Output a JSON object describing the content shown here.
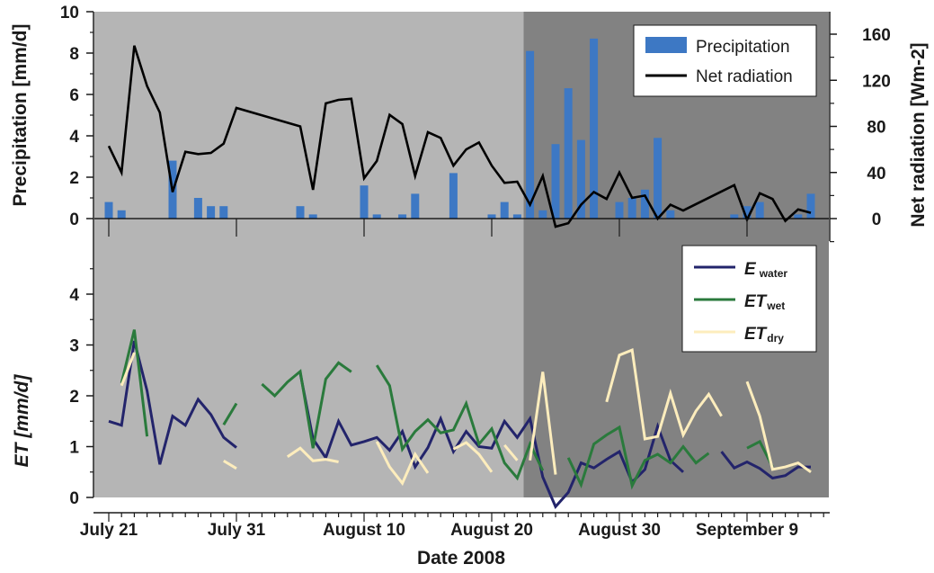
{
  "chart_data": [
    {
      "type": "bar+line",
      "panel": "top",
      "ylabel_left": "Precipitation [mm/d]",
      "ylabel_right": "Net radiation [Wm-2]",
      "ylim_left": [
        0,
        10
      ],
      "ylim_right": [
        -20,
        180
      ],
      "yticks_left": [
        "0",
        "2",
        "4",
        "6",
        "8",
        "10"
      ],
      "yticks_right": [
        "0",
        "40",
        "80",
        "120",
        "160"
      ],
      "xlim": [
        0,
        56
      ],
      "shading": [
        {
          "x_from": 0,
          "x_to": 32.5,
          "color": "#b5b5b5"
        },
        {
          "x_from": 32.5,
          "x_to": 56,
          "color": "#828282"
        }
      ],
      "legend": {
        "placement": "top-right",
        "entries": [
          "Precipitation",
          "Net radiation"
        ]
      },
      "series": [
        {
          "name": "Precipitation",
          "kind": "bar",
          "color": "#3d78c4",
          "x": [
            0,
            1,
            5,
            7,
            8,
            9,
            15,
            16,
            20,
            21,
            23,
            24,
            27,
            30,
            31,
            32,
            33,
            34,
            35,
            36,
            37,
            38,
            40,
            41,
            42,
            43,
            44,
            49,
            50,
            51,
            54,
            55
          ],
          "values": [
            0.8,
            0.4,
            2.8,
            1.0,
            0.6,
            0.6,
            0.6,
            0.2,
            1.6,
            0.2,
            0.2,
            1.2,
            2.2,
            0.2,
            0.8,
            0.2,
            8.1,
            0.4,
            3.6,
            6.3,
            3.8,
            8.7,
            0.8,
            1.0,
            1.4,
            3.9,
            0.4,
            0.2,
            0.6,
            0.8,
            0.2,
            1.2
          ]
        },
        {
          "name": "Net radiation",
          "kind": "line",
          "color": "#000000",
          "x": [
            0,
            1,
            2,
            3,
            4,
            5,
            6,
            7,
            8,
            9,
            10,
            15,
            16,
            17,
            18,
            19,
            20,
            21,
            22,
            23,
            24,
            25,
            26,
            27,
            28,
            29,
            30,
            31,
            32,
            33,
            34,
            35,
            36,
            37,
            38,
            39,
            40,
            41,
            42,
            43,
            44,
            45,
            49,
            50,
            51,
            52,
            53,
            54,
            55
          ],
          "values": [
            63,
            40,
            150,
            115,
            92,
            23,
            58,
            56,
            57,
            65,
            96,
            80,
            25,
            100,
            103,
            104,
            35,
            50,
            90,
            82,
            37,
            75,
            70,
            46,
            60,
            66,
            46,
            31,
            32,
            12,
            37,
            -7,
            -4,
            12,
            23,
            17,
            40,
            18,
            20,
            0,
            12,
            7,
            29,
            -1,
            22,
            17,
            -2,
            8,
            5
          ]
        }
      ]
    },
    {
      "type": "line",
      "panel": "bottom",
      "ylabel": "ET [mm/d]",
      "xlabel": "Date 2008",
      "ylim": [
        0,
        4.5
      ],
      "yticks": [
        "0",
        "1",
        "2",
        "3",
        "4"
      ],
      "xlim": [
        0,
        56
      ],
      "x_ticks": [
        {
          "x": 0,
          "label": "July 21"
        },
        {
          "x": 10,
          "label": "July 31"
        },
        {
          "x": 20,
          "label": "August 10"
        },
        {
          "x": 30,
          "label": "August 20"
        },
        {
          "x": 40,
          "label": "August 30"
        },
        {
          "x": 50,
          "label": "September 9"
        }
      ],
      "shading": [
        {
          "x_from": 0,
          "x_to": 32.5,
          "color": "#b5b5b5"
        },
        {
          "x_from": 32.5,
          "x_to": 56,
          "color": "#828282"
        }
      ],
      "legend": {
        "placement": "top-right",
        "entries": [
          {
            "main": "E",
            "sub": "water"
          },
          {
            "main": "ET",
            "sub": "wet"
          },
          {
            "main": "ET",
            "sub": "dry"
          }
        ]
      },
      "series": [
        {
          "name": "E water",
          "color": "#23246b",
          "segments": [
            [
              [
                0,
                1.5
              ],
              [
                1,
                1.42
              ],
              [
                2,
                3.08
              ],
              [
                3,
                2.1
              ],
              [
                4,
                0.65
              ],
              [
                5,
                1.6
              ],
              [
                6,
                1.42
              ],
              [
                7,
                1.93
              ],
              [
                8,
                1.63
              ],
              [
                9,
                1.18
              ],
              [
                10,
                0.98
              ]
            ],
            [
              [
                15,
                2.45
              ],
              [
                16,
                1.15
              ],
              [
                17,
                0.78
              ],
              [
                18,
                1.5
              ],
              [
                19,
                1.03
              ],
              [
                20,
                1.1
              ],
              [
                21,
                1.18
              ],
              [
                22,
                0.93
              ],
              [
                23,
                1.3
              ],
              [
                24,
                0.6
              ],
              [
                25,
                0.98
              ],
              [
                26,
                1.55
              ],
              [
                27,
                0.9
              ],
              [
                28,
                1.3
              ],
              [
                29,
                1.0
              ],
              [
                30,
                0.97
              ],
              [
                31,
                1.5
              ],
              [
                32,
                1.18
              ],
              [
                33,
                1.55
              ],
              [
                34,
                0.4
              ],
              [
                35,
                -0.18
              ],
              [
                36,
                0.1
              ],
              [
                37,
                0.68
              ],
              [
                38,
                0.58
              ],
              [
                39,
                0.75
              ],
              [
                40,
                0.9
              ],
              [
                41,
                0.3
              ],
              [
                42,
                0.55
              ],
              [
                43,
                1.4
              ],
              [
                44,
                0.73
              ],
              [
                45,
                0.5
              ]
            ],
            [
              [
                48,
                0.9
              ],
              [
                49,
                0.58
              ],
              [
                50,
                0.7
              ],
              [
                51,
                0.57
              ],
              [
                52,
                0.38
              ],
              [
                53,
                0.43
              ],
              [
                54,
                0.6
              ],
              [
                55,
                0.6
              ]
            ]
          ]
        },
        {
          "name": "ET wet",
          "color": "#2a7a3c",
          "segments": [
            [
              [
                1,
                2.25
              ],
              [
                2,
                3.3
              ],
              [
                3,
                1.2
              ]
            ],
            [
              [
                9,
                1.43
              ],
              [
                10,
                1.85
              ]
            ],
            [
              [
                12,
                2.23
              ],
              [
                13,
                2.0
              ],
              [
                14,
                2.27
              ],
              [
                15,
                2.48
              ],
              [
                16,
                0.97
              ],
              [
                17,
                2.33
              ],
              [
                18,
                2.65
              ],
              [
                19,
                2.47
              ]
            ],
            [
              [
                21,
                2.6
              ],
              [
                22,
                2.2
              ],
              [
                23,
                0.95
              ],
              [
                24,
                1.3
              ],
              [
                25,
                1.53
              ],
              [
                26,
                1.27
              ],
              [
                27,
                1.33
              ],
              [
                28,
                1.85
              ],
              [
                29,
                1.05
              ],
              [
                30,
                1.35
              ],
              [
                31,
                0.68
              ],
              [
                32,
                0.38
              ],
              [
                33,
                1.05
              ],
              [
                34,
                0.53
              ]
            ],
            [
              [
                36,
                0.78
              ],
              [
                37,
                0.25
              ],
              [
                38,
                1.05
              ],
              [
                39,
                1.23
              ],
              [
                40,
                1.38
              ],
              [
                41,
                0.23
              ],
              [
                42,
                0.73
              ],
              [
                43,
                0.85
              ],
              [
                44,
                0.68
              ],
              [
                45,
                1.0
              ],
              [
                46,
                0.68
              ],
              [
                47,
                0.87
              ]
            ],
            [
              [
                50,
                0.97
              ],
              [
                51,
                1.1
              ],
              [
                52,
                0.6
              ]
            ]
          ]
        },
        {
          "name": "ET dry",
          "color": "#fdedbd",
          "segments": [
            [
              [
                1,
                2.2
              ],
              [
                2,
                2.85
              ]
            ],
            [
              [
                9,
                0.72
              ],
              [
                10,
                0.57
              ]
            ],
            [
              [
                14,
                0.8
              ],
              [
                15,
                0.97
              ],
              [
                16,
                0.72
              ],
              [
                17,
                0.75
              ],
              [
                18,
                0.7
              ]
            ],
            [
              [
                21,
                1.1
              ],
              [
                22,
                0.6
              ],
              [
                23,
                0.28
              ],
              [
                24,
                0.85
              ],
              [
                25,
                0.48
              ]
            ],
            [
              [
                27,
                0.95
              ],
              [
                28,
                1.08
              ],
              [
                29,
                0.85
              ],
              [
                30,
                0.5
              ]
            ],
            [
              [
                31,
                1.03
              ],
              [
                32,
                0.73
              ]
            ],
            [
              [
                33,
                0.73
              ],
              [
                34,
                2.47
              ],
              [
                35,
                0.45
              ]
            ],
            [
              [
                39,
                1.88
              ],
              [
                40,
                2.8
              ],
              [
                41,
                2.9
              ],
              [
                42,
                1.15
              ],
              [
                43,
                1.2
              ],
              [
                44,
                2.05
              ],
              [
                45,
                1.23
              ],
              [
                46,
                1.7
              ],
              [
                47,
                2.03
              ],
              [
                48,
                1.6
              ]
            ],
            [
              [
                50,
                2.28
              ],
              [
                51,
                1.6
              ],
              [
                52,
                0.55
              ],
              [
                53,
                0.6
              ],
              [
                54,
                0.68
              ],
              [
                55,
                0.5
              ]
            ]
          ]
        }
      ]
    }
  ]
}
